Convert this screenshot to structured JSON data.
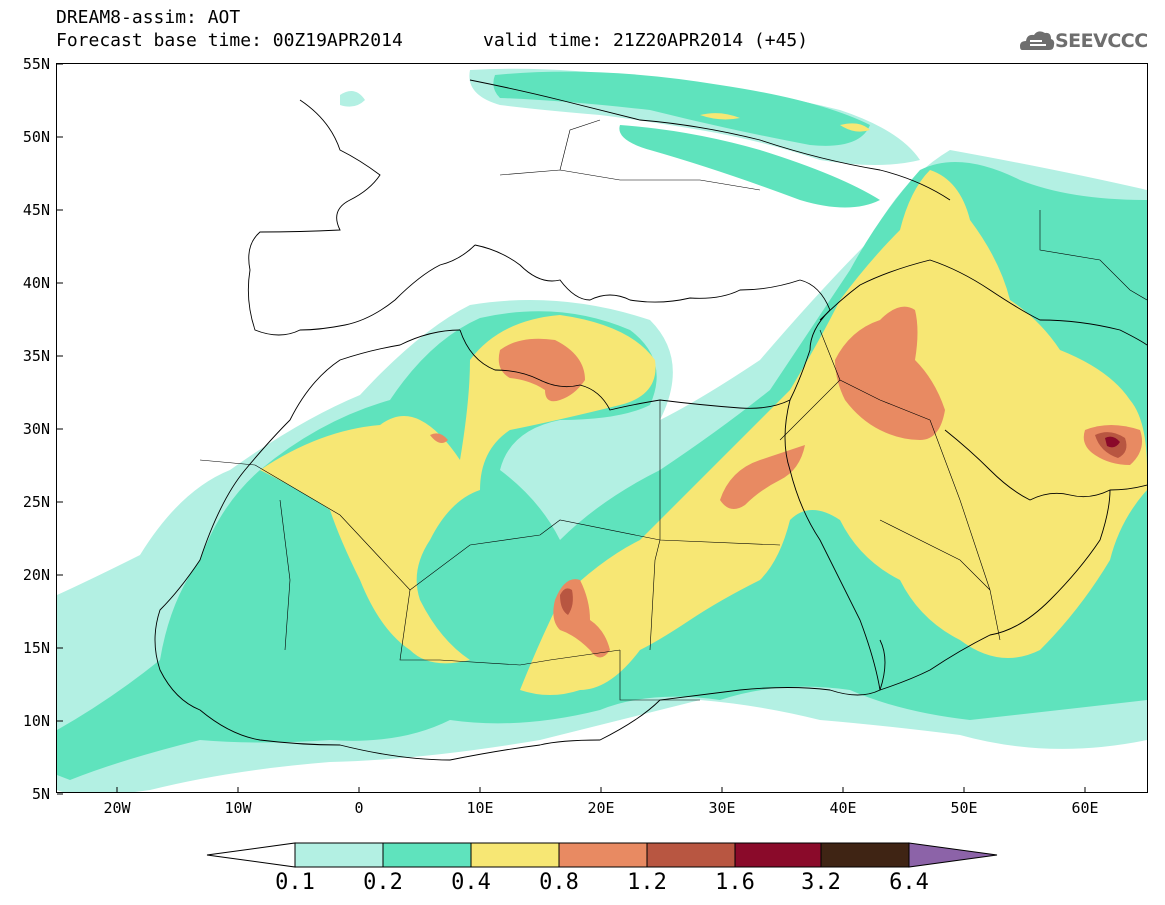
{
  "header": {
    "title_line1": "DREAM8-assim: AOT",
    "title_line2": "Forecast base time: 00Z19APR2014",
    "valid_time": "valid time: 21Z20APR2014 (+45)",
    "logo_text": "SEEVCCC"
  },
  "map": {
    "lat_labels": [
      "55N",
      "50N",
      "45N",
      "40N",
      "35N",
      "30N",
      "25N",
      "20N",
      "15N",
      "10N",
      "5N"
    ],
    "lon_labels": [
      "20W",
      "10W",
      "0",
      "10E",
      "20E",
      "30E",
      "40E",
      "50E",
      "60E"
    ]
  },
  "colorbar": {
    "labels": [
      "0.1",
      "0.2",
      "0.4",
      "0.8",
      "1.2",
      "1.6",
      "3.2",
      "6.4"
    ],
    "colors": [
      "#ffffff",
      "#b3f0e3",
      "#5fe3bd",
      "#f7e774",
      "#e88a62",
      "#b85641",
      "#8a0a2a",
      "#3f2414",
      "#8c63a8"
    ]
  },
  "palette": {
    "c01": "#b3f0e3",
    "c02": "#5fe3bd",
    "c04": "#f7e774",
    "c08": "#e88a62",
    "c12": "#b85641",
    "c16": "#8a0a2a"
  }
}
